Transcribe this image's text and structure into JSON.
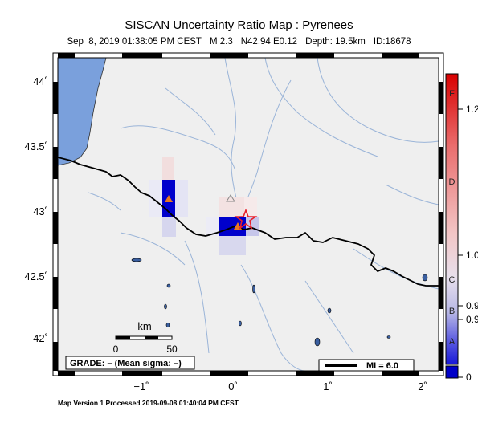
{
  "header": {
    "title": "SISCAN Uncertainty Ratio Map : Pyrenees",
    "date": "Sep  8, 2019 01:38:05 PM CEST",
    "magnitude": "M 2.3",
    "location": "N42.94 E0.12",
    "depth": "Depth: 19.5km",
    "id": "ID:18678"
  },
  "axes": {
    "lat_labels": [
      "44˚",
      "43.5˚",
      "43˚",
      "42.5˚",
      "42˚"
    ],
    "lon_labels": [
      "−1˚",
      "0˚",
      "1˚",
      "2˚"
    ]
  },
  "scale": {
    "unit": "km",
    "labels": [
      "0",
      "50"
    ]
  },
  "grade": "GRADE: – (Mean sigma: –)",
  "mmi_legend": "MI = 6.0",
  "colorbar": {
    "letters": [
      "F",
      "D",
      "C",
      "B",
      "A"
    ],
    "values": [
      "1.2",
      "1.0",
      "0.9",
      "0.9",
      "0"
    ],
    "colors": [
      "#d40000",
      "#f2b8b8",
      "#b8b8e8",
      "#2a2ad8",
      "#0000c8"
    ]
  },
  "footer": "Map Version 1 Processed 2019-09-08 01:40:04 PM CEST",
  "colors": {
    "land": "#efefef",
    "sea": "#7aa0dc",
    "river": "#9ab4d8",
    "border": "#000000",
    "epicenter": "#e8202a",
    "station": "#e87820"
  }
}
